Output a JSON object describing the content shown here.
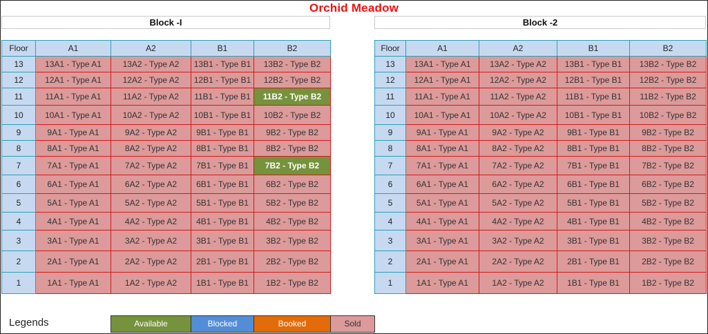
{
  "title": "Orchid Meadow",
  "status_colors": {
    "available": "#76923c",
    "blocked": "#538dd5",
    "booked": "#e26b0a",
    "sold": "#dc9a9a"
  },
  "blocks": [
    {
      "name": "Block -I",
      "columns": [
        "Floor",
        "A1",
        "A2",
        "B1",
        "B2"
      ],
      "rows": [
        {
          "floor": "13",
          "units": [
            {
              "label": "13A1 - Type A1",
              "status": "sold"
            },
            {
              "label": "13A2 - Type A2",
              "status": "sold"
            },
            {
              "label": "13B1 - Type B1",
              "status": "sold"
            },
            {
              "label": "13B2 - Type B2",
              "status": "sold"
            }
          ]
        },
        {
          "floor": "12",
          "units": [
            {
              "label": "12A1 - Type A1",
              "status": "sold"
            },
            {
              "label": "12A2 - Type A2",
              "status": "sold"
            },
            {
              "label": "12B1 - Type B1",
              "status": "sold"
            },
            {
              "label": "12B2 - Type B2",
              "status": "sold"
            }
          ]
        },
        {
          "floor": "11",
          "units": [
            {
              "label": "11A1 - Type A1",
              "status": "sold"
            },
            {
              "label": "11A2 - Type A2",
              "status": "sold"
            },
            {
              "label": "11B1 - Type B1",
              "status": "sold"
            },
            {
              "label": "11B2 - Type B2",
              "status": "available"
            }
          ]
        },
        {
          "floor": "10",
          "units": [
            {
              "label": "10A1 - Type A1",
              "status": "sold"
            },
            {
              "label": "10A2 - Type A2",
              "status": "sold"
            },
            {
              "label": "10B1 - Type B1",
              "status": "sold"
            },
            {
              "label": "10B2 - Type B2",
              "status": "sold"
            }
          ]
        },
        {
          "floor": "9",
          "units": [
            {
              "label": "9A1 - Type A1",
              "status": "sold"
            },
            {
              "label": "9A2 - Type A2",
              "status": "sold"
            },
            {
              "label": "9B1 - Type B1",
              "status": "sold"
            },
            {
              "label": "9B2 - Type B2",
              "status": "sold"
            }
          ]
        },
        {
          "floor": "8",
          "units": [
            {
              "label": "8A1 - Type A1",
              "status": "sold"
            },
            {
              "label": "8A2 - Type A2",
              "status": "sold"
            },
            {
              "label": "8B1 - Type B1",
              "status": "sold"
            },
            {
              "label": "8B2 - Type B2",
              "status": "sold"
            }
          ]
        },
        {
          "floor": "7",
          "units": [
            {
              "label": "7A1 - Type A1",
              "status": "sold"
            },
            {
              "label": "7A2 - Type A2",
              "status": "sold"
            },
            {
              "label": "7B1 - Type B1",
              "status": "sold"
            },
            {
              "label": "7B2 - Type B2",
              "status": "available"
            }
          ]
        },
        {
          "floor": "6",
          "units": [
            {
              "label": "6A1 - Type A1",
              "status": "sold"
            },
            {
              "label": "6A2 - Type A2",
              "status": "sold"
            },
            {
              "label": "6B1 - Type B1",
              "status": "sold"
            },
            {
              "label": "6B2 - Type B2",
              "status": "sold"
            }
          ]
        },
        {
          "floor": "5",
          "units": [
            {
              "label": "5A1 - Type A1",
              "status": "sold"
            },
            {
              "label": "5A2 - Type A2",
              "status": "sold"
            },
            {
              "label": "5B1 - Type B1",
              "status": "sold"
            },
            {
              "label": "5B2 - Type B2",
              "status": "sold"
            }
          ]
        },
        {
          "floor": "4",
          "units": [
            {
              "label": "4A1 - Type A1",
              "status": "sold"
            },
            {
              "label": "4A2 - Type A2",
              "status": "sold"
            },
            {
              "label": "4B1 - Type B1",
              "status": "sold"
            },
            {
              "label": "4B2 - Type B2",
              "status": "sold"
            }
          ]
        },
        {
          "floor": "3",
          "units": [
            {
              "label": "3A1 - Type A1",
              "status": "sold"
            },
            {
              "label": "3A2 - Type A2",
              "status": "sold"
            },
            {
              "label": "3B1 - Type B1",
              "status": "sold"
            },
            {
              "label": "3B2 - Type B2",
              "status": "sold"
            }
          ]
        },
        {
          "floor": "2",
          "units": [
            {
              "label": "2A1 - Type A1",
              "status": "sold"
            },
            {
              "label": "2A2 - Type A2",
              "status": "sold"
            },
            {
              "label": "2B1 - Type B1",
              "status": "sold"
            },
            {
              "label": "2B2 - Type B2",
              "status": "sold"
            }
          ]
        },
        {
          "floor": "1",
          "units": [
            {
              "label": "1A1 - Type A1",
              "status": "sold"
            },
            {
              "label": "1A2 - Type A2",
              "status": "sold"
            },
            {
              "label": "1B1 - Type B1",
              "status": "sold"
            },
            {
              "label": "1B2 - Type B2",
              "status": "sold"
            }
          ]
        }
      ]
    },
    {
      "name": "Block -2",
      "columns": [
        "Floor",
        "A1",
        "A2",
        "B1",
        "B2"
      ],
      "rows": [
        {
          "floor": "13",
          "units": [
            {
              "label": "13A1 - Type A1",
              "status": "sold"
            },
            {
              "label": "13A2 - Type A2",
              "status": "sold"
            },
            {
              "label": "13B1 - Type B1",
              "status": "sold"
            },
            {
              "label": "13B2 - Type B2",
              "status": "sold"
            }
          ]
        },
        {
          "floor": "12",
          "units": [
            {
              "label": "12A1 - Type A1",
              "status": "sold"
            },
            {
              "label": "12A2 - Type A2",
              "status": "sold"
            },
            {
              "label": "12B1 - Type B1",
              "status": "sold"
            },
            {
              "label": "12B2 - Type B2",
              "status": "sold"
            }
          ]
        },
        {
          "floor": "11",
          "units": [
            {
              "label": "11A1 - Type A1",
              "status": "sold"
            },
            {
              "label": "11A2 - Type A2",
              "status": "sold"
            },
            {
              "label": "11B1 - Type B1",
              "status": "sold"
            },
            {
              "label": "11B2 - Type B2",
              "status": "sold"
            }
          ]
        },
        {
          "floor": "10",
          "units": [
            {
              "label": "10A1 - Type A1",
              "status": "sold"
            },
            {
              "label": "10A2 - Type A2",
              "status": "sold"
            },
            {
              "label": "10B1 - Type B1",
              "status": "sold"
            },
            {
              "label": "10B2 - Type B2",
              "status": "sold"
            }
          ]
        },
        {
          "floor": "9",
          "units": [
            {
              "label": "9A1 - Type A1",
              "status": "sold"
            },
            {
              "label": "9A2 - Type A2",
              "status": "sold"
            },
            {
              "label": "9B1 - Type B1",
              "status": "sold"
            },
            {
              "label": "9B2 - Type B2",
              "status": "sold"
            }
          ]
        },
        {
          "floor": "8",
          "units": [
            {
              "label": "8A1 - Type A1",
              "status": "sold"
            },
            {
              "label": "8A2 - Type A2",
              "status": "sold"
            },
            {
              "label": "8B1 - Type B1",
              "status": "sold"
            },
            {
              "label": "8B2 - Type B2",
              "status": "sold"
            }
          ]
        },
        {
          "floor": "7",
          "units": [
            {
              "label": "7A1 - Type A1",
              "status": "sold"
            },
            {
              "label": "7A2 - Type A2",
              "status": "sold"
            },
            {
              "label": "7B1 - Type B1",
              "status": "sold"
            },
            {
              "label": "7B2 - Type B2",
              "status": "sold"
            }
          ]
        },
        {
          "floor": "6",
          "units": [
            {
              "label": "6A1 - Type A1",
              "status": "sold"
            },
            {
              "label": "6A2 - Type A2",
              "status": "sold"
            },
            {
              "label": "6B1 - Type B1",
              "status": "sold"
            },
            {
              "label": "6B2 - Type B2",
              "status": "sold"
            }
          ]
        },
        {
          "floor": "5",
          "units": [
            {
              "label": "5A1 - Type A1",
              "status": "sold"
            },
            {
              "label": "5A2 - Type A2",
              "status": "sold"
            },
            {
              "label": "5B1 - Type B1",
              "status": "sold"
            },
            {
              "label": "5B2 - Type B2",
              "status": "sold"
            }
          ]
        },
        {
          "floor": "4",
          "units": [
            {
              "label": "4A1 - Type A1",
              "status": "sold"
            },
            {
              "label": "4A2 - Type A2",
              "status": "sold"
            },
            {
              "label": "4B1 - Type B1",
              "status": "sold"
            },
            {
              "label": "4B2 - Type B2",
              "status": "sold"
            }
          ]
        },
        {
          "floor": "3",
          "units": [
            {
              "label": "3A1 - Type A1",
              "status": "sold"
            },
            {
              "label": "3A2 - Type A2",
              "status": "sold"
            },
            {
              "label": "3B1 - Type B1",
              "status": "sold"
            },
            {
              "label": "3B2 - Type B2",
              "status": "sold"
            }
          ]
        },
        {
          "floor": "2",
          "units": [
            {
              "label": "2A1 - Type A1",
              "status": "sold"
            },
            {
              "label": "2A2 - Type A2",
              "status": "sold"
            },
            {
              "label": "2B1 - Type B1",
              "status": "sold"
            },
            {
              "label": "2B2 - Type B2",
              "status": "sold"
            }
          ]
        },
        {
          "floor": "1",
          "units": [
            {
              "label": "1A1 - Type A1",
              "status": "sold"
            },
            {
              "label": "1A2 - Type A2",
              "status": "sold"
            },
            {
              "label": "1B1 - Type B1",
              "status": "sold"
            },
            {
              "label": "1B2 - Type B2",
              "status": "sold"
            }
          ]
        }
      ]
    }
  ],
  "legend": {
    "title": "Legends",
    "items": [
      {
        "label": "Available",
        "status": "available"
      },
      {
        "label": "Blocked",
        "status": "blocked"
      },
      {
        "label": "Booked",
        "status": "booked"
      },
      {
        "label": "Sold",
        "status": "sold"
      }
    ]
  }
}
